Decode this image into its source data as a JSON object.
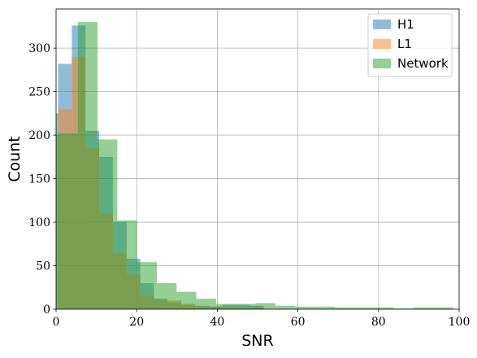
{
  "chart_data": {
    "type": "bar",
    "subtype": "overlaid-histogram",
    "title": "",
    "xlabel": "SNR",
    "ylabel": "Count",
    "xlim": [
      0,
      100
    ],
    "ylim": [
      0,
      345
    ],
    "xticks": [
      0,
      20,
      40,
      60,
      80,
      100
    ],
    "yticks": [
      0,
      50,
      100,
      150,
      200,
      250,
      300
    ],
    "grid": true,
    "legend_position": "top-right",
    "bar_opacity": 0.5,
    "series": [
      {
        "name": "H1",
        "color": "#1f77b4",
        "bin_edges": [
          0,
          0.5,
          3.9,
          7.3,
          10.7,
          14.1,
          17.5,
          20.9,
          24.3,
          27.7,
          31.1,
          34.5,
          37.9,
          41.3,
          44.7,
          48.1,
          51.5
        ],
        "counts": [
          225,
          282,
          326,
          205,
          175,
          100,
          58,
          30,
          12,
          8,
          5,
          4,
          3,
          5,
          5,
          4
        ]
      },
      {
        "name": "L1",
        "color": "#ff7f0e",
        "bin_edges": [
          0,
          0.5,
          3.9,
          7.3,
          10.7,
          14.1,
          17.5,
          20.9,
          24.3,
          27.7,
          31.1,
          34.5,
          37.9,
          41.3,
          44.7,
          48.1,
          51.5
        ],
        "counts": [
          0,
          230,
          290,
          185,
          110,
          65,
          40,
          15,
          10,
          10,
          6,
          3,
          3,
          2,
          2,
          2
        ]
      },
      {
        "name": "Network",
        "color": "#2ca02c",
        "bin_edges": [
          0,
          0.5,
          5.4,
          10.3,
          15.2,
          20.1,
          25.0,
          29.9,
          34.8,
          39.7,
          44.6,
          49.5,
          54.4,
          59.3,
          64.2,
          69.1,
          74.0,
          78.9,
          83.8,
          88.7,
          93.6,
          98.5
        ],
        "counts": [
          200,
          202,
          330,
          195,
          102,
          54,
          30,
          20,
          12,
          6,
          6,
          7,
          4,
          3,
          3,
          2,
          2,
          2,
          1,
          2,
          2
        ]
      }
    ]
  }
}
